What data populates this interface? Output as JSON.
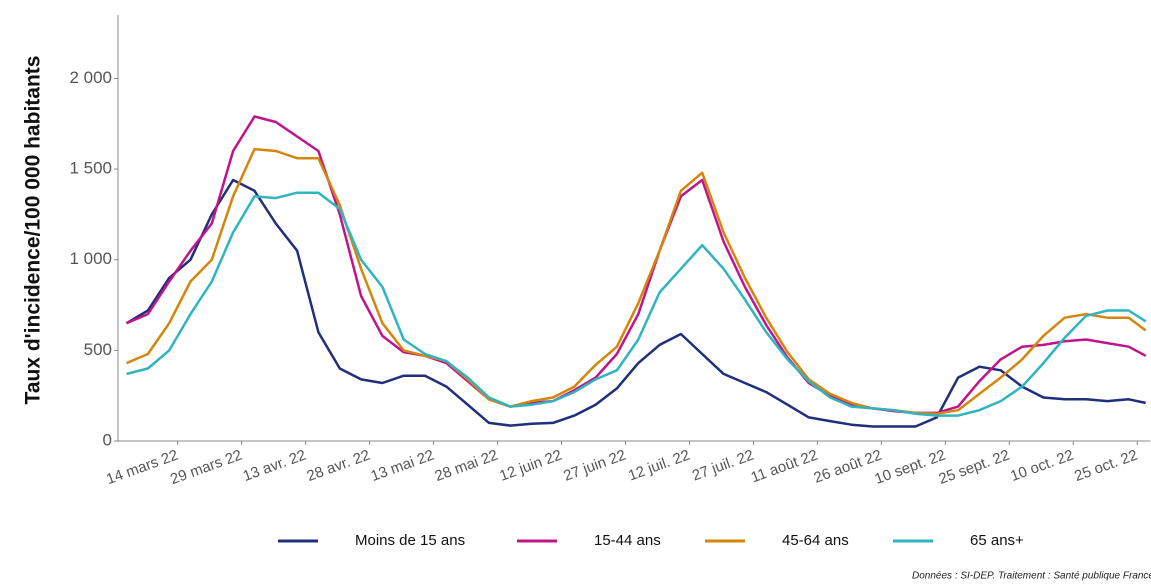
{
  "chart_data": {
    "type": "line",
    "y_label": "Taux d'incidence/100 000 habitants",
    "source": "Données : SI-DEP. Traitement : Santé publique France",
    "x": [
      "2022-03-02",
      "2022-03-07",
      "2022-03-12",
      "2022-03-17",
      "2022-03-22",
      "2022-03-27",
      "2022-04-01",
      "2022-04-06",
      "2022-04-11",
      "2022-04-16",
      "2022-04-21",
      "2022-04-26",
      "2022-05-01",
      "2022-05-06",
      "2022-05-11",
      "2022-05-16",
      "2022-05-21",
      "2022-05-26",
      "2022-05-31",
      "2022-06-05",
      "2022-06-10",
      "2022-06-15",
      "2022-06-20",
      "2022-06-25",
      "2022-06-30",
      "2022-07-05",
      "2022-07-10",
      "2022-07-15",
      "2022-07-20",
      "2022-07-25",
      "2022-07-30",
      "2022-08-04",
      "2022-08-09",
      "2022-08-14",
      "2022-08-19",
      "2022-08-24",
      "2022-08-29",
      "2022-09-03",
      "2022-09-08",
      "2022-09-13",
      "2022-09-18",
      "2022-09-23",
      "2022-09-28",
      "2022-10-03",
      "2022-10-08",
      "2022-10-13",
      "2022-10-18",
      "2022-10-23",
      "2022-10-27"
    ],
    "series": [
      {
        "name": "Moins de 15 ans",
        "color": "#1f2f7a",
        "values": [
          650,
          720,
          900,
          1000,
          1250,
          1440,
          1380,
          1200,
          1050,
          600,
          400,
          340,
          320,
          360,
          360,
          300,
          200,
          100,
          85,
          95,
          100,
          140,
          200,
          290,
          430,
          530,
          590,
          480,
          370,
          320,
          270,
          200,
          130,
          110,
          90,
          80,
          80,
          80,
          130,
          350,
          410,
          390,
          300,
          240,
          230,
          230,
          220,
          230,
          210
        ]
      },
      {
        "name": "15-44 ans",
        "color": "#c0148c",
        "values": [
          650,
          700,
          880,
          1050,
          1200,
          1600,
          1790,
          1760,
          1680,
          1600,
          1250,
          800,
          580,
          490,
          470,
          430,
          330,
          230,
          190,
          210,
          220,
          280,
          350,
          480,
          700,
          1050,
          1350,
          1440,
          1100,
          850,
          640,
          460,
          320,
          250,
          200,
          180,
          165,
          155,
          155,
          190,
          330,
          450,
          520,
          530,
          550,
          560,
          540,
          520,
          470
        ]
      },
      {
        "name": "45-64 ans",
        "color": "#d4860b",
        "values": [
          430,
          480,
          650,
          880,
          1000,
          1350,
          1610,
          1600,
          1560,
          1560,
          1300,
          950,
          650,
          500,
          470,
          440,
          340,
          230,
          190,
          220,
          240,
          300,
          420,
          520,
          760,
          1050,
          1380,
          1480,
          1150,
          900,
          680,
          490,
          340,
          260,
          210,
          180,
          170,
          155,
          150,
          170,
          260,
          350,
          450,
          580,
          680,
          700,
          680,
          680,
          610
        ]
      },
      {
        "name": "65 ans+",
        "color": "#2eb5c0",
        "values": [
          370,
          400,
          500,
          700,
          880,
          1150,
          1350,
          1340,
          1370,
          1370,
          1280,
          1000,
          850,
          560,
          480,
          440,
          350,
          240,
          190,
          200,
          220,
          270,
          340,
          390,
          560,
          820,
          950,
          1080,
          950,
          780,
          600,
          450,
          330,
          240,
          190,
          180,
          170,
          150,
          140,
          140,
          170,
          220,
          300,
          430,
          570,
          690,
          720,
          720,
          660
        ]
      }
    ],
    "xlim": [
      "2022-02-28",
      "2022-10-28"
    ],
    "xticks": [
      {
        "value": "2022-03-14",
        "label": "14 mars 22"
      },
      {
        "value": "2022-03-29",
        "label": "29 mars 22"
      },
      {
        "value": "2022-04-13",
        "label": "13 avr. 22"
      },
      {
        "value": "2022-04-28",
        "label": "28 avr. 22"
      },
      {
        "value": "2022-05-13",
        "label": "13 mai 22"
      },
      {
        "value": "2022-05-28",
        "label": "28 mai 22"
      },
      {
        "value": "2022-06-12",
        "label": "12 juin 22"
      },
      {
        "value": "2022-06-27",
        "label": "27 juin 22"
      },
      {
        "value": "2022-07-12",
        "label": "12 juil. 22"
      },
      {
        "value": "2022-07-27",
        "label": "27 juil. 22"
      },
      {
        "value": "2022-08-11",
        "label": "11 août 22"
      },
      {
        "value": "2022-08-26",
        "label": "26 août 22"
      },
      {
        "value": "2022-09-10",
        "label": "10 sept. 22"
      },
      {
        "value": "2022-09-25",
        "label": "25 sept. 22"
      },
      {
        "value": "2022-10-10",
        "label": "10 oct. 22"
      },
      {
        "value": "2022-10-25",
        "label": "25 oct. 22"
      }
    ],
    "ylim": [
      0,
      2350
    ],
    "yticks": [
      0,
      500,
      {
        "value": 1000,
        "label": "1 000"
      },
      {
        "value": 1500,
        "label": "1 500"
      },
      {
        "value": 2000,
        "label": "2 000"
      }
    ],
    "grid": false,
    "legend": "bottom"
  }
}
